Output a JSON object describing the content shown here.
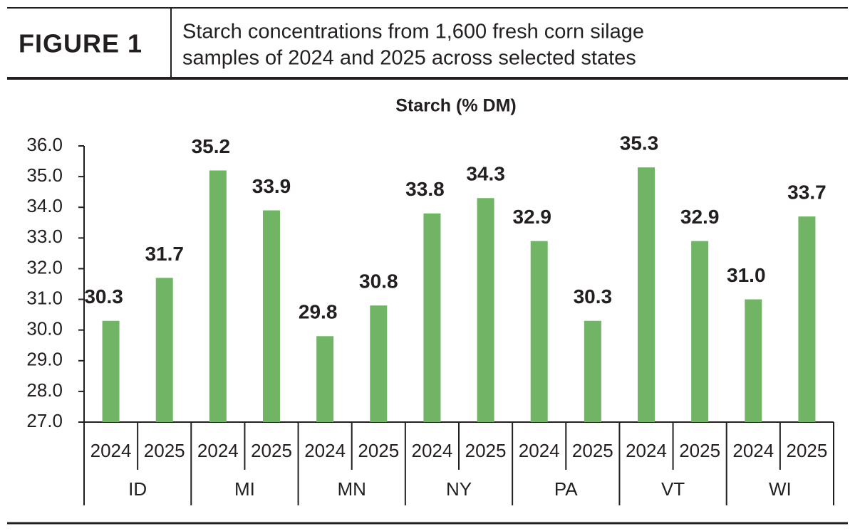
{
  "chart_data": {
    "type": "bar",
    "figure_label": "FIGURE 1",
    "subtitle": [
      "Starch concentrations from 1,600 fresh corn silage",
      "samples of 2024 and 2025 across selected states"
    ],
    "title": "Starch (% DM)",
    "groups": [
      "ID",
      "MI",
      "MN",
      "NY",
      "PA",
      "VT",
      "WI"
    ],
    "categories": [
      "2024",
      "2025",
      "2024",
      "2025",
      "2024",
      "2025",
      "2024",
      "2025",
      "2024",
      "2025",
      "2024",
      "2025",
      "2024",
      "2025"
    ],
    "values": [
      30.3,
      31.7,
      35.2,
      33.9,
      29.8,
      30.8,
      33.8,
      34.3,
      32.9,
      30.3,
      35.3,
      32.9,
      31.0,
      33.7
    ],
    "value_labels": [
      "30.3",
      "31.7",
      "35.2",
      "33.9",
      "29.8",
      "30.8",
      "33.8",
      "34.3",
      "32.9",
      "30.3",
      "35.3",
      "32.9",
      "31.0",
      "33.7"
    ],
    "color": "#71b466",
    "ylim": [
      27,
      36
    ],
    "yticks": [
      {
        "value": 27,
        "label": "27.0"
      },
      {
        "value": 28,
        "label": "28.0"
      },
      {
        "value": 29,
        "label": "29.0"
      },
      {
        "value": 30,
        "label": "30.0"
      },
      {
        "value": 31,
        "label": "31.0"
      },
      {
        "value": 32,
        "label": "32.0"
      },
      {
        "value": 33,
        "label": "33.0"
      },
      {
        "value": 34,
        "label": "34.0"
      },
      {
        "value": 35,
        "label": "35.0"
      },
      {
        "value": 36,
        "label": "36.0"
      }
    ]
  }
}
